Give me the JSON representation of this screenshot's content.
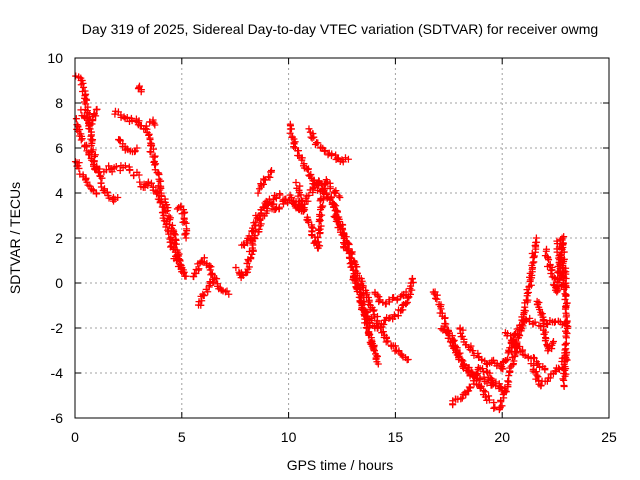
{
  "chart_data": {
    "type": "scatter",
    "title": "Day 319 of 2025, Sidereal Day-to-day VTEC variation (SDTVAR) for receiver owmg",
    "xlabel": "GPS time / hours",
    "ylabel": "SDTVAR / TECUs",
    "xlim": [
      0,
      25
    ],
    "ylim": [
      -6,
      10
    ],
    "xticks": [
      0,
      5,
      10,
      15,
      20,
      25
    ],
    "yticks": [
      -6,
      -4,
      -2,
      0,
      2,
      4,
      6,
      8,
      10
    ],
    "grid": true,
    "marker": "+",
    "series_color": "#ff0000",
    "series": [
      {
        "name": "SDTVAR",
        "tracks": [
          {
            "x": [
              0.0,
              0.2,
              0.4,
              0.6,
              0.8,
              1.0,
              1.2,
              1.4,
              1.6,
              1.8,
              2.0
            ],
            "y": [
              9.1,
              9.2,
              8.6,
              7.4,
              6.0,
              5.0,
              4.6,
              4.2,
              3.9,
              3.7,
              3.8
            ]
          },
          {
            "x": [
              0.0,
              0.3,
              0.6,
              0.9,
              1.2,
              1.5,
              1.8,
              2.1,
              2.4,
              2.7,
              3.0
            ],
            "y": [
              7.2,
              6.4,
              5.8,
              5.2,
              5.0,
              5.1,
              5.0,
              5.1,
              5.2,
              4.9,
              4.8
            ]
          },
          {
            "x": [
              0.0,
              0.2,
              0.4,
              0.6,
              0.8,
              1.0
            ],
            "y": [
              5.6,
              5.0,
              4.8,
              4.4,
              4.2,
              4.0
            ]
          },
          {
            "x": [
              0.3,
              0.5,
              0.7,
              0.9,
              1.0
            ],
            "y": [
              7.6,
              7.3,
              7.0,
              7.5,
              7.7
            ]
          },
          {
            "x": [
              1.9,
              2.2,
              2.5,
              2.8,
              3.1,
              3.4,
              3.5,
              3.7,
              3.9,
              4.0,
              4.1,
              4.3,
              4.5,
              4.7,
              4.9,
              5.0,
              5.1,
              5.2
            ],
            "y": [
              7.6,
              7.4,
              7.2,
              7.3,
              7.0,
              6.6,
              6.2,
              5.5,
              4.8,
              4.2,
              3.8,
              3.2,
              2.6,
              1.8,
              1.0,
              0.6,
              0.4,
              0.3
            ]
          },
          {
            "x": [
              2.0,
              2.3,
              2.6,
              2.9
            ],
            "y": [
              6.4,
              6.1,
              5.8,
              6.0
            ]
          },
          {
            "x": [
              3.0,
              3.2,
              3.4,
              3.6,
              3.8,
              4.0,
              4.2,
              4.4,
              4.6,
              4.8,
              5.0
            ],
            "y": [
              4.4,
              4.2,
              4.5,
              4.3,
              4.0,
              3.5,
              2.9,
              2.2,
              1.5,
              0.9,
              0.5
            ]
          },
          {
            "x": [
              3.4,
              3.6,
              3.7
            ],
            "y": [
              7.0,
              7.2,
              7.1
            ]
          },
          {
            "x": [
              3.0,
              3.1
            ],
            "y": [
              8.8,
              8.5
            ]
          },
          {
            "x": [
              4.8,
              5.0,
              5.1,
              5.2
            ],
            "y": [
              3.4,
              3.3,
              3.0,
              2.0
            ]
          },
          {
            "x": [
              5.6,
              5.8,
              6.0,
              6.2,
              6.4,
              6.6,
              6.8,
              7.0,
              7.2
            ],
            "y": [
              0.2,
              0.8,
              1.1,
              0.9,
              0.4,
              0.0,
              -0.2,
              -0.4,
              -0.5
            ]
          },
          {
            "x": [
              5.8,
              6.0,
              6.2,
              6.4,
              6.6
            ],
            "y": [
              -1.0,
              -0.6,
              -0.3,
              0.0,
              0.2
            ]
          },
          {
            "x": [
              7.6,
              7.8,
              8.0,
              8.2,
              8.5,
              8.8,
              9.1,
              9.4,
              9.7,
              10.0,
              10.3,
              10.6
            ],
            "y": [
              0.6,
              0.2,
              0.4,
              1.2,
              2.2,
              3.0,
              3.6,
              3.2,
              3.5,
              3.8,
              3.5,
              3.2
            ]
          },
          {
            "x": [
              7.8,
              8.1,
              8.4,
              8.7,
              9.0,
              9.3,
              9.6,
              9.9,
              10.2,
              10.5,
              10.8,
              11.1,
              11.4,
              11.7
            ],
            "y": [
              1.6,
              1.8,
              2.6,
              3.3,
              3.6,
              3.8,
              3.9,
              3.7,
              3.6,
              3.4,
              3.6,
              4.2,
              4.6,
              4.4
            ]
          },
          {
            "x": [
              8.6,
              8.9,
              9.2
            ],
            "y": [
              4.0,
              4.6,
              5.0
            ]
          },
          {
            "x": [
              10.0,
              10.2,
              10.4,
              10.6,
              10.8,
              11.0,
              11.2,
              11.4,
              11.6,
              11.8,
              12.0,
              12.2,
              12.4,
              12.6,
              12.8,
              13.0,
              13.2,
              13.4,
              13.6,
              13.8,
              14.0
            ],
            "y": [
              7.0,
              6.4,
              5.8,
              5.6,
              5.2,
              4.8,
              4.4,
              4.2,
              4.1,
              4.0,
              3.6,
              3.0,
              2.4,
              1.8,
              1.2,
              0.6,
              0.0,
              -0.6,
              -1.4,
              -2.2,
              -3.0
            ]
          },
          {
            "x": [
              10.4,
              10.6,
              10.8,
              11.0,
              11.2,
              11.4,
              11.6,
              11.8,
              12.0,
              12.2,
              12.4
            ],
            "y": [
              4.4,
              3.6,
              3.0,
              2.6,
              2.0,
              1.5,
              4.2,
              4.5,
              4.2,
              4.0,
              3.8
            ]
          },
          {
            "x": [
              11.0,
              11.3,
              11.6,
              11.9,
              12.2,
              12.5,
              12.8
            ],
            "y": [
              6.8,
              6.2,
              6.0,
              5.8,
              5.6,
              5.4,
              5.5
            ]
          },
          {
            "x": [
              12.0,
              12.3,
              12.6,
              12.9,
              13.2,
              13.5,
              13.8,
              14.1,
              14.4,
              14.7,
              15.0,
              15.3,
              15.6
            ],
            "y": [
              3.8,
              3.0,
              2.2,
              1.4,
              0.6,
              -0.2,
              -1.0,
              -1.6,
              -2.2,
              -2.6,
              -2.9,
              -3.2,
              -3.4
            ]
          },
          {
            "x": [
              13.5,
              13.8,
              14.1,
              14.4,
              14.7,
              15.0,
              15.3,
              15.6,
              15.8
            ],
            "y": [
              -1.2,
              -1.6,
              -2.0,
              -1.8,
              -1.6,
              -1.4,
              -1.2,
              -0.8,
              0.2
            ]
          },
          {
            "x": [
              14.0,
              14.3,
              14.6,
              14.9,
              15.2,
              15.5
            ],
            "y": [
              -0.4,
              -0.8,
              -0.9,
              -0.7,
              -0.6,
              -0.4
            ]
          },
          {
            "x": [
              13.0,
              13.3,
              13.6,
              13.9,
              14.2
            ],
            "y": [
              0.4,
              -0.4,
              -1.6,
              -2.8,
              -3.6
            ]
          },
          {
            "x": [
              16.8,
              17.0,
              17.2,
              17.4,
              17.6,
              17.8,
              18.0,
              18.3,
              18.6,
              18.9,
              19.2,
              19.5,
              19.8,
              20.0
            ],
            "y": [
              -0.4,
              -0.8,
              -1.4,
              -2.0,
              -2.6,
              -3.0,
              -3.4,
              -3.8,
              -4.0,
              -4.2,
              -4.3,
              -4.5,
              -4.6,
              -4.8
            ]
          },
          {
            "x": [
              17.2,
              17.5,
              17.8,
              18.1,
              18.4,
              18.7,
              19.0,
              19.3,
              19.6,
              19.9
            ],
            "y": [
              -2.0,
              -2.2,
              -2.8,
              -3.4,
              -4.0,
              -4.2,
              -3.8,
              -4.0,
              -4.4,
              -4.6
            ]
          },
          {
            "x": [
              17.6,
              17.9,
              18.2,
              18.5,
              18.8,
              19.1,
              19.4
            ],
            "y": [
              -5.4,
              -5.2,
              -5.0,
              -4.6,
              -4.4,
              -4.8,
              -5.2
            ]
          },
          {
            "x": [
              18.0,
              18.4,
              18.8,
              19.2,
              19.6,
              20.0
            ],
            "y": [
              -2.0,
              -2.8,
              -3.2,
              -3.6,
              -3.4,
              -3.8
            ]
          },
          {
            "x": [
              19.6,
              19.8,
              20.0,
              20.2,
              20.4,
              20.6,
              20.8,
              21.0,
              21.2,
              21.4,
              21.6
            ],
            "y": [
              -5.4,
              -5.6,
              -5.2,
              -4.6,
              -3.8,
              -3.0,
              -2.2,
              -1.4,
              -0.6,
              0.6,
              2.0
            ]
          },
          {
            "x": [
              20.0,
              20.3,
              20.6,
              20.9,
              21.2,
              21.5,
              21.8,
              22.1,
              22.4,
              22.7,
              23.0
            ],
            "y": [
              -3.8,
              -3.2,
              -2.4,
              -1.8,
              -1.6,
              -1.8,
              -1.9,
              -1.8,
              -1.7,
              -1.8,
              -1.8
            ]
          },
          {
            "x": [
              20.2,
              20.5,
              20.8,
              21.1,
              21.4,
              21.7,
              22.0
            ],
            "y": [
              -2.2,
              -2.6,
              -3.0,
              -3.2,
              -3.4,
              -3.6,
              -3.8
            ]
          },
          {
            "x": [
              21.4,
              21.6,
              21.8,
              22.0,
              22.2,
              22.4,
              22.6,
              22.8,
              23.0
            ],
            "y": [
              -3.6,
              -4.2,
              -4.6,
              -4.4,
              -4.2,
              -4.0,
              -3.8,
              -3.6,
              -3.2
            ]
          },
          {
            "x": [
              21.6,
              21.8,
              22.0,
              22.2,
              22.4
            ],
            "y": [
              -0.8,
              -1.2,
              -2.4,
              -3.0,
              -2.6
            ]
          },
          {
            "x": [
              22.0,
              22.2,
              22.4,
              22.6,
              22.8,
              22.9,
              23.0
            ],
            "y": [
              1.4,
              0.8,
              0.2,
              -0.4,
              2.0,
              0.6,
              -0.2
            ]
          },
          {
            "x": [
              22.6,
              22.8,
              23.0,
              23.0,
              22.9
            ],
            "y": [
              1.8,
              0.4,
              -1.0,
              -2.4,
              -4.6
            ]
          }
        ]
      }
    ]
  }
}
